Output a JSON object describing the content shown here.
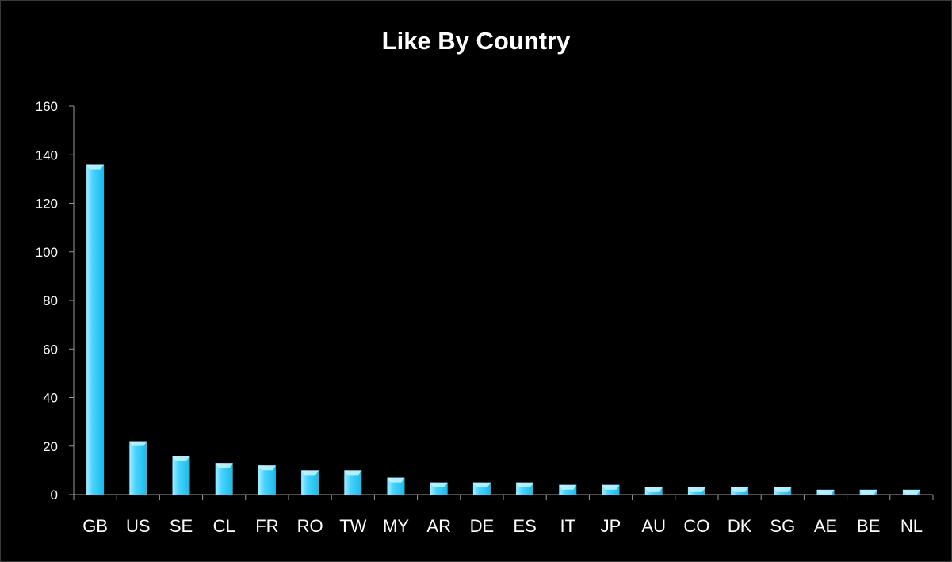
{
  "chart_data": {
    "type": "bar",
    "title": "Like By Country",
    "xlabel": "",
    "ylabel": "",
    "categories": [
      "GB",
      "US",
      "SE",
      "CL",
      "FR",
      "RO",
      "TW",
      "MY",
      "AR",
      "DE",
      "ES",
      "IT",
      "JP",
      "AU",
      "CO",
      "DK",
      "SG",
      "AE",
      "BE",
      "NL"
    ],
    "values": [
      136,
      22,
      16,
      13,
      12,
      10,
      10,
      7,
      5,
      5,
      5,
      4,
      4,
      3,
      3,
      3,
      3,
      2,
      2,
      2
    ],
    "ylim": [
      0,
      160
    ],
    "yticks": [
      0,
      20,
      40,
      60,
      80,
      100,
      120,
      140,
      160
    ],
    "grid": false,
    "legend": "none",
    "colors": {
      "background": "#000000",
      "axis": "#9a9a9a",
      "text": "#ffffff",
      "bar_light": "#a8ecff",
      "bar_mid": "#4cd2fb",
      "bar_dark": "#16bcec",
      "bar_cap": "#c8f4ff"
    }
  }
}
